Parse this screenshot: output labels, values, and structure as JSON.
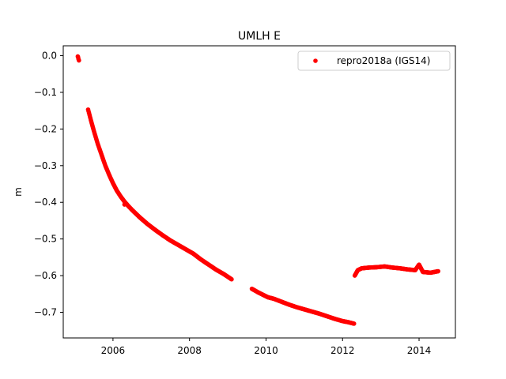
{
  "chart_data": {
    "type": "scatter",
    "title": "UMLH E",
    "xlabel": "",
    "ylabel": "m",
    "xlim": [
      2004.7,
      2014.95
    ],
    "ylim": [
      -0.77,
      0.027
    ],
    "xticks": [
      2006,
      2008,
      2010,
      2012,
      2014
    ],
    "xtick_labels": [
      "2006",
      "2008",
      "2010",
      "2012",
      "2014"
    ],
    "yticks": [
      0.0,
      -0.1,
      -0.2,
      -0.3,
      -0.4,
      -0.5,
      -0.6,
      -0.7
    ],
    "ytick_labels": [
      "0.0",
      "−0.1",
      "−0.2",
      "−0.3",
      "−0.4",
      "−0.5",
      "−0.6",
      "−0.7"
    ],
    "grid": false,
    "legend_position": "top-right",
    "series": [
      {
        "name": "repro2018a (IGS14)",
        "color": "#ff0000",
        "marker": "dot",
        "x": [
          2005.08,
          2005.09,
          2005.1,
          2005.11,
          2005.35,
          2005.42,
          2005.5,
          2005.6,
          2005.7,
          2005.8,
          2005.9,
          2006.0,
          2006.1,
          2006.2,
          2006.3,
          2006.4,
          2006.5,
          2006.7,
          2006.9,
          2007.1,
          2007.3,
          2007.5,
          2007.7,
          2007.9,
          2008.1,
          2008.3,
          2008.5,
          2008.7,
          2008.9,
          2009.1,
          2009.63,
          2009.7,
          2009.8,
          2010.05,
          2010.2,
          2010.4,
          2010.6,
          2010.8,
          2011.0,
          2011.2,
          2011.4,
          2011.6,
          2011.8,
          2012.0,
          2012.15,
          2012.3,
          2012.32,
          2012.4,
          2012.5,
          2012.7,
          2012.9,
          2013.1,
          2013.3,
          2013.5,
          2013.7,
          2013.9,
          2014.0,
          2014.1,
          2014.3,
          2014.5,
          2006.3
        ],
        "y": [
          -0.002,
          -0.005,
          -0.01,
          -0.013,
          -0.147,
          -0.175,
          -0.205,
          -0.24,
          -0.27,
          -0.3,
          -0.325,
          -0.348,
          -0.368,
          -0.384,
          -0.398,
          -0.41,
          -0.421,
          -0.441,
          -0.459,
          -0.475,
          -0.49,
          -0.504,
          -0.516,
          -0.528,
          -0.54,
          -0.556,
          -0.57,
          -0.584,
          -0.596,
          -0.61,
          -0.636,
          -0.64,
          -0.646,
          -0.659,
          -0.663,
          -0.671,
          -0.679,
          -0.686,
          -0.692,
          -0.698,
          -0.704,
          -0.711,
          -0.718,
          -0.724,
          -0.727,
          -0.731,
          -0.6,
          -0.585,
          -0.58,
          -0.578,
          -0.577,
          -0.575,
          -0.578,
          -0.58,
          -0.583,
          -0.585,
          -0.57,
          -0.59,
          -0.592,
          -0.588,
          -0.406
        ]
      }
    ]
  }
}
